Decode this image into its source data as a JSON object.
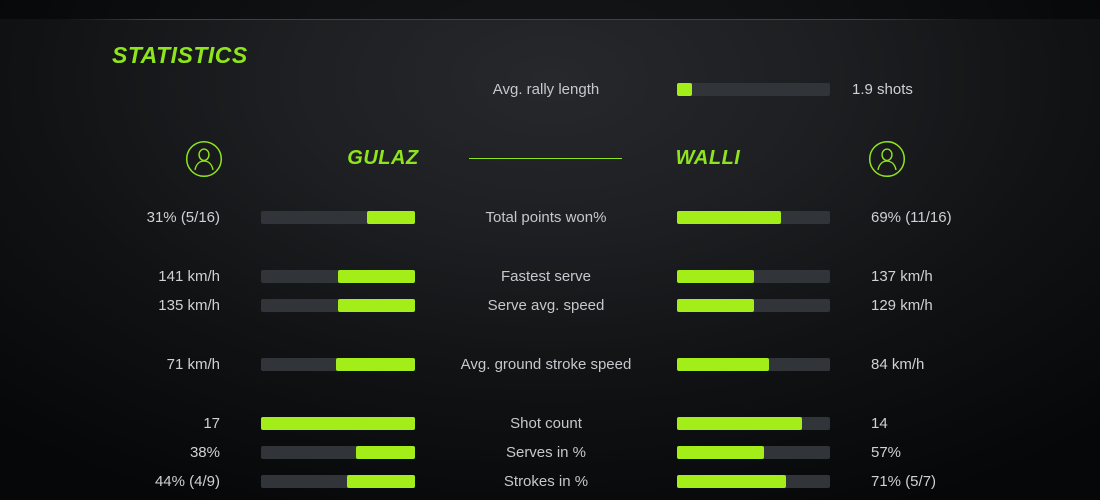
{
  "header": {
    "title": "STATISTICS"
  },
  "colors": {
    "accent_text": "#8fe51d",
    "accent_bar": "#a3ee18",
    "bar_track": "#313439",
    "label_text": "#c5c8cc",
    "background": "#121416"
  },
  "players": {
    "left": {
      "name": "GULAZ",
      "avatar_icon": "person-circle-icon"
    },
    "right": {
      "name": "WALLI",
      "avatar_icon": "person-circle-icon"
    }
  },
  "rally": {
    "label": "Avg. rally length",
    "value": "1.9 shots",
    "fill_pct": 10
  },
  "stats": {
    "rows": [
      {
        "label": "Total points won%",
        "left_value": "31% (5/16)",
        "right_value": "69% (11/16)",
        "left_fill": 31,
        "right_fill": 68
      },
      {
        "label": "Fastest serve",
        "left_value": "141 km/h",
        "right_value": "137 km/h",
        "left_fill": 50,
        "right_fill": 50
      },
      {
        "label": "Serve avg. speed",
        "left_value": "135 km/h",
        "right_value": "129 km/h",
        "left_fill": 50,
        "right_fill": 50
      },
      {
        "label": "Avg. ground stroke speed",
        "left_value": "71 km/h",
        "right_value": "84 km/h",
        "left_fill": 51,
        "right_fill": 60
      },
      {
        "label": "Shot count",
        "left_value": "17",
        "right_value": "14",
        "left_fill": 100,
        "right_fill": 82
      },
      {
        "label": "Serves in %",
        "left_value": "38%",
        "right_value": "57%",
        "left_fill": 38,
        "right_fill": 57
      },
      {
        "label": "Strokes in %",
        "left_value": "44% (4/9)",
        "right_value": "71% (5/7)",
        "left_fill": 44,
        "right_fill": 71
      }
    ]
  },
  "chart_data": {
    "type": "bar",
    "title": "STATISTICS",
    "layout": "mirrored horizontal comparison bars, labels centered between players",
    "shared_metric": {
      "label": "Avg. rally length",
      "value": 1.9,
      "unit": "shots",
      "display": "1.9 shots"
    },
    "categories": [
      "Total points won%",
      "Fastest serve",
      "Serve avg. speed",
      "Avg. ground stroke speed",
      "Shot count",
      "Serves in %",
      "Strokes in %"
    ],
    "series": [
      {
        "name": "GULAZ",
        "values": [
          31,
          141,
          135,
          71,
          17,
          38,
          44
        ],
        "displays": [
          "31% (5/16)",
          "141 km/h",
          "135 km/h",
          "71 km/h",
          "17",
          "38%",
          "44% (4/9)"
        ]
      },
      {
        "name": "WALLI",
        "values": [
          69,
          137,
          129,
          84,
          14,
          57,
          71
        ],
        "displays": [
          "69% (11/16)",
          "137 km/h",
          "129 km/h",
          "84 km/h",
          "14",
          "57%",
          "71% (5/7)"
        ]
      }
    ]
  }
}
